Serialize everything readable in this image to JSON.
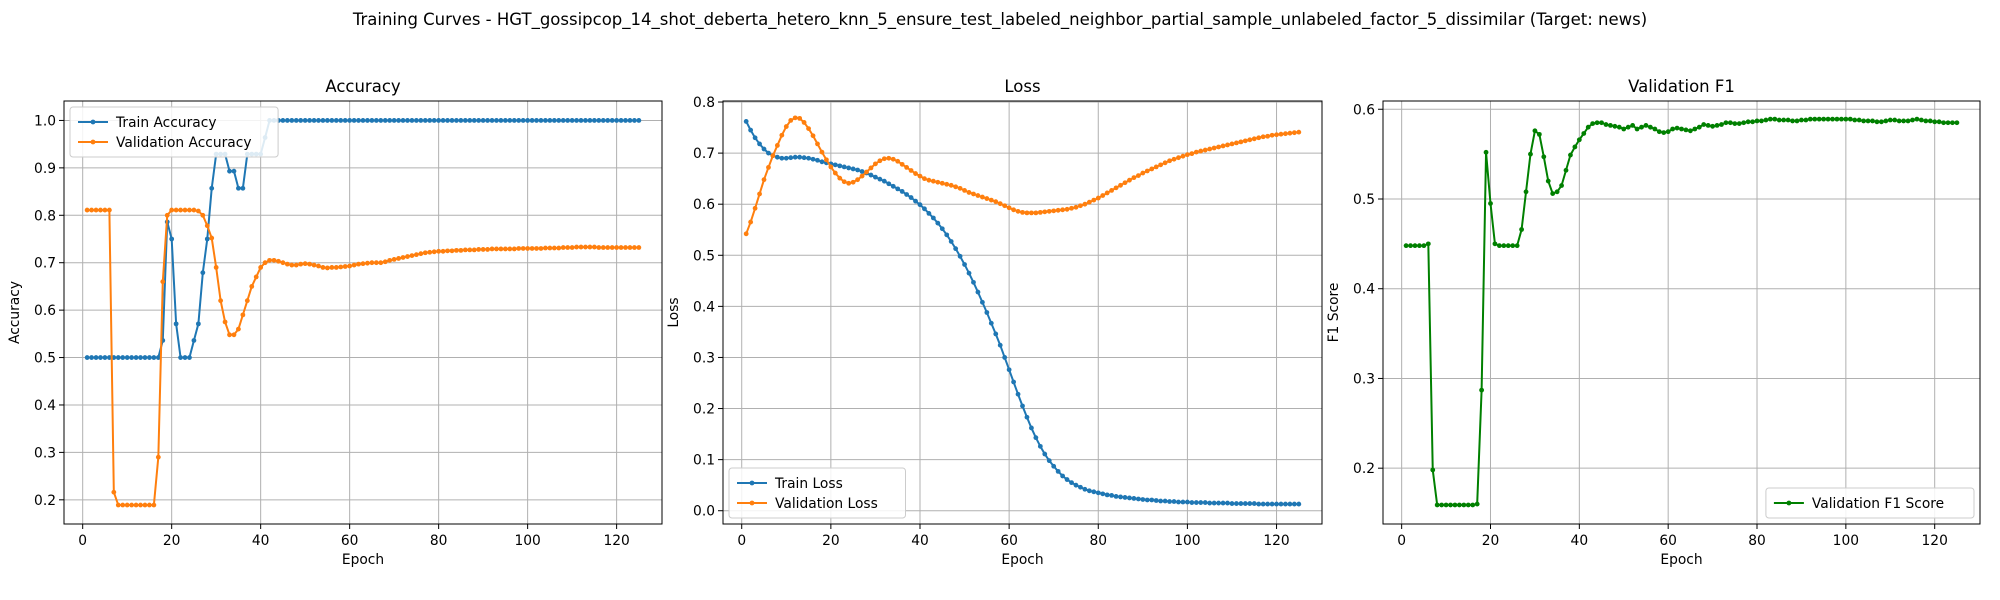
{
  "figure": {
    "suptitle": "Training Curves - HGT_gossipcop_14_shot_deberta_hetero_knn_5_ensure_test_labeled_neighbor_partial_sample_unlabeled_factor_5_dissimilar (Target: news)"
  },
  "colors": {
    "train": "#1f77b4",
    "validation": "#ff7f0e",
    "f1": "#008000",
    "grid": "#b0b0b0"
  },
  "chart_data": [
    {
      "type": "line",
      "title": "Accuracy",
      "xlabel": "Epoch",
      "ylabel": "Accuracy",
      "xlim": [
        -4.2,
        130.2
      ],
      "ylim": [
        0.149,
        1.041
      ],
      "xticks": [
        0,
        20,
        40,
        60,
        80,
        100,
        120
      ],
      "yticks": [
        0.2,
        0.3,
        0.4,
        0.5,
        0.6,
        0.7,
        0.8,
        0.9,
        1.0
      ],
      "ytick_labels": [
        "0.2",
        "0.3",
        "0.4",
        "0.5",
        "0.6",
        "0.7",
        "0.8",
        "0.9",
        "1.0"
      ],
      "grid": true,
      "legend_position": "top-left",
      "series": [
        {
          "name": "Train Accuracy",
          "color": "#1f77b4",
          "values": [
            0.5,
            0.5,
            0.5,
            0.5,
            0.5,
            0.5,
            0.5,
            0.5,
            0.5,
            0.5,
            0.5,
            0.5,
            0.5,
            0.5,
            0.5,
            0.5,
            0.5,
            0.536,
            0.786,
            0.75,
            0.571,
            0.5,
            0.5,
            0.5,
            0.536,
            0.571,
            0.679,
            0.75,
            0.857,
            0.929,
            0.929,
            0.929,
            0.893,
            0.893,
            0.857,
            0.857,
            0.929,
            0.929,
            0.929,
            0.929,
            0.964,
            1,
            1,
            1,
            1,
            1,
            1,
            1,
            1,
            1,
            1,
            1,
            1,
            1,
            1,
            1,
            1,
            1,
            1,
            1,
            1,
            1,
            1,
            1,
            1,
            1,
            1,
            1,
            1,
            1,
            1,
            1,
            1,
            1,
            1,
            1,
            1,
            1,
            1,
            1,
            1,
            1,
            1,
            1,
            1,
            1,
            1,
            1,
            1,
            1,
            1,
            1,
            1,
            1,
            1,
            1,
            1,
            1,
            1,
            1,
            1,
            1,
            1,
            1,
            1,
            1,
            1,
            1,
            1,
            1,
            1,
            1,
            1,
            1,
            1,
            1,
            1,
            1,
            1,
            1,
            1,
            1,
            1,
            1,
            1
          ]
        },
        {
          "name": "Validation Accuracy",
          "color": "#ff7f0e",
          "values": [
            0.811,
            0.811,
            0.811,
            0.811,
            0.811,
            0.811,
            0.216,
            0.189,
            0.189,
            0.189,
            0.189,
            0.189,
            0.189,
            0.189,
            0.189,
            0.189,
            0.29,
            0.66,
            0.8,
            0.811,
            0.811,
            0.811,
            0.811,
            0.811,
            0.811,
            0.809,
            0.8,
            0.778,
            0.752,
            0.69,
            0.62,
            0.575,
            0.548,
            0.548,
            0.56,
            0.59,
            0.62,
            0.65,
            0.67,
            0.69,
            0.7,
            0.705,
            0.705,
            0.703,
            0.7,
            0.697,
            0.695,
            0.695,
            0.697,
            0.698,
            0.697,
            0.695,
            0.693,
            0.69,
            0.689,
            0.69,
            0.69,
            0.691,
            0.692,
            0.693,
            0.695,
            0.697,
            0.698,
            0.699,
            0.7,
            0.7,
            0.7,
            0.702,
            0.705,
            0.707,
            0.709,
            0.711,
            0.713,
            0.715,
            0.717,
            0.719,
            0.721,
            0.722,
            0.723,
            0.724,
            0.724,
            0.725,
            0.725,
            0.726,
            0.726,
            0.727,
            0.727,
            0.727,
            0.728,
            0.728,
            0.728,
            0.729,
            0.729,
            0.729,
            0.729,
            0.729,
            0.729,
            0.73,
            0.73,
            0.73,
            0.73,
            0.73,
            0.73,
            0.731,
            0.731,
            0.731,
            0.731,
            0.732,
            0.732,
            0.732,
            0.733,
            0.733,
            0.733,
            0.733,
            0.733,
            0.732,
            0.732,
            0.732,
            0.732,
            0.732,
            0.732,
            0.732,
            0.732,
            0.732,
            0.732
          ]
        }
      ]
    },
    {
      "type": "line",
      "title": "Loss",
      "xlabel": "Epoch",
      "ylabel": "Loss",
      "xlim": [
        -4.2,
        130.2
      ],
      "ylim": [
        -0.026,
        0.802
      ],
      "xticks": [
        0,
        20,
        40,
        60,
        80,
        100,
        120
      ],
      "yticks": [
        0.0,
        0.1,
        0.2,
        0.3,
        0.4,
        0.5,
        0.6,
        0.7,
        0.8
      ],
      "ytick_labels": [
        "0.0",
        "0.1",
        "0.2",
        "0.3",
        "0.4",
        "0.5",
        "0.6",
        "0.7",
        "0.8"
      ],
      "grid": true,
      "legend_position": "bottom-left",
      "series": [
        {
          "name": "Train Loss",
          "color": "#1f77b4",
          "values": [
            0.762,
            0.745,
            0.73,
            0.718,
            0.708,
            0.7,
            0.695,
            0.692,
            0.69,
            0.69,
            0.691,
            0.692,
            0.692,
            0.691,
            0.69,
            0.688,
            0.686,
            0.683,
            0.681,
            0.679,
            0.677,
            0.675,
            0.673,
            0.671,
            0.669,
            0.667,
            0.664,
            0.661,
            0.657,
            0.653,
            0.649,
            0.645,
            0.64,
            0.635,
            0.63,
            0.625,
            0.619,
            0.613,
            0.606,
            0.599,
            0.591,
            0.582,
            0.573,
            0.563,
            0.552,
            0.54,
            0.527,
            0.513,
            0.498,
            0.482,
            0.465,
            0.447,
            0.428,
            0.408,
            0.388,
            0.367,
            0.346,
            0.324,
            0.3,
            0.276,
            0.252,
            0.228,
            0.205,
            0.183,
            0.162,
            0.143,
            0.126,
            0.111,
            0.098,
            0.087,
            0.077,
            0.068,
            0.061,
            0.055,
            0.05,
            0.046,
            0.042,
            0.039,
            0.037,
            0.035,
            0.033,
            0.031,
            0.03,
            0.028,
            0.027,
            0.026,
            0.025,
            0.024,
            0.023,
            0.022,
            0.021,
            0.021,
            0.02,
            0.019,
            0.019,
            0.018,
            0.018,
            0.017,
            0.017,
            0.017,
            0.016,
            0.016,
            0.016,
            0.016,
            0.015,
            0.015,
            0.015,
            0.015,
            0.015,
            0.014,
            0.014,
            0.014,
            0.014,
            0.014,
            0.014,
            0.013,
            0.013,
            0.013,
            0.013,
            0.013,
            0.013,
            0.013,
            0.013,
            0.013,
            0.013
          ]
        },
        {
          "name": "Validation Loss",
          "color": "#ff7f0e",
          "values": [
            0.542,
            0.565,
            0.592,
            0.62,
            0.648,
            0.672,
            0.695,
            0.715,
            0.735,
            0.752,
            0.764,
            0.769,
            0.768,
            0.76,
            0.748,
            0.734,
            0.718,
            0.702,
            0.687,
            0.673,
            0.661,
            0.651,
            0.644,
            0.641,
            0.643,
            0.648,
            0.655,
            0.663,
            0.671,
            0.679,
            0.685,
            0.689,
            0.69,
            0.688,
            0.684,
            0.678,
            0.672,
            0.666,
            0.66,
            0.655,
            0.65,
            0.647,
            0.645,
            0.643,
            0.641,
            0.639,
            0.637,
            0.634,
            0.631,
            0.627,
            0.623,
            0.62,
            0.617,
            0.614,
            0.611,
            0.608,
            0.605,
            0.601,
            0.597,
            0.593,
            0.589,
            0.586,
            0.584,
            0.583,
            0.583,
            0.583,
            0.584,
            0.585,
            0.586,
            0.587,
            0.588,
            0.589,
            0.59,
            0.592,
            0.594,
            0.597,
            0.6,
            0.604,
            0.608,
            0.612,
            0.617,
            0.622,
            0.627,
            0.632,
            0.637,
            0.642,
            0.647,
            0.652,
            0.656,
            0.661,
            0.665,
            0.669,
            0.673,
            0.677,
            0.681,
            0.685,
            0.688,
            0.691,
            0.694,
            0.697,
            0.699,
            0.702,
            0.704,
            0.706,
            0.708,
            0.71,
            0.712,
            0.714,
            0.716,
            0.718,
            0.72,
            0.722,
            0.724,
            0.726,
            0.728,
            0.73,
            0.732,
            0.733,
            0.735,
            0.736,
            0.737,
            0.738,
            0.739,
            0.74,
            0.741
          ]
        }
      ]
    },
    {
      "type": "line",
      "title": "Validation F1",
      "xlabel": "Epoch",
      "ylabel": "F1 Score",
      "xlim": [
        -4.2,
        130.2
      ],
      "ylim": [
        0.1378,
        0.6092
      ],
      "xticks": [
        0,
        20,
        40,
        60,
        80,
        100,
        120
      ],
      "yticks": [
        0.2,
        0.3,
        0.4,
        0.5,
        0.6
      ],
      "ytick_labels": [
        "0.2",
        "0.3",
        "0.4",
        "0.5",
        "0.6"
      ],
      "grid": true,
      "legend_position": "bottom-right",
      "series": [
        {
          "name": "Validation F1 Score",
          "color": "#008000",
          "values": [
            0.448,
            0.448,
            0.448,
            0.448,
            0.448,
            0.45,
            0.198,
            0.159,
            0.159,
            0.159,
            0.159,
            0.159,
            0.159,
            0.159,
            0.159,
            0.159,
            0.16,
            0.287,
            0.552,
            0.495,
            0.45,
            0.448,
            0.448,
            0.448,
            0.448,
            0.448,
            0.466,
            0.508,
            0.55,
            0.576,
            0.572,
            0.547,
            0.52,
            0.506,
            0.508,
            0.515,
            0.532,
            0.549,
            0.558,
            0.566,
            0.573,
            0.58,
            0.584,
            0.585,
            0.585,
            0.583,
            0.582,
            0.581,
            0.58,
            0.578,
            0.58,
            0.582,
            0.578,
            0.58,
            0.582,
            0.58,
            0.578,
            0.575,
            0.574,
            0.575,
            0.578,
            0.579,
            0.578,
            0.577,
            0.576,
            0.578,
            0.58,
            0.583,
            0.582,
            0.581,
            0.582,
            0.583,
            0.585,
            0.585,
            0.584,
            0.584,
            0.585,
            0.586,
            0.586,
            0.587,
            0.587,
            0.588,
            0.589,
            0.589,
            0.588,
            0.588,
            0.588,
            0.587,
            0.587,
            0.588,
            0.588,
            0.589,
            0.589,
            0.589,
            0.589,
            0.589,
            0.589,
            0.589,
            0.589,
            0.589,
            0.589,
            0.588,
            0.588,
            0.587,
            0.587,
            0.587,
            0.586,
            0.586,
            0.587,
            0.588,
            0.588,
            0.587,
            0.587,
            0.587,
            0.588,
            0.589,
            0.588,
            0.587,
            0.587,
            0.586,
            0.586,
            0.585,
            0.585,
            0.585,
            0.585
          ]
        }
      ]
    }
  ]
}
